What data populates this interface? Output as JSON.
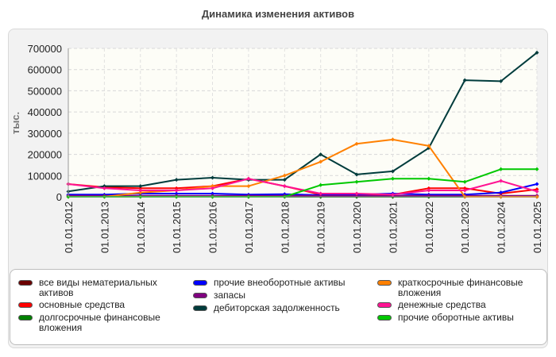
{
  "chart_data": {
    "type": "line",
    "title": "Динамика изменения активов",
    "ylabel": "тыс.",
    "xlabel": "",
    "ylim": [
      0,
      700000
    ],
    "yticks": [
      "0",
      "100000",
      "200000",
      "300000",
      "400000",
      "500000",
      "600000",
      "700000"
    ],
    "ytick_values": [
      0,
      100000,
      200000,
      300000,
      400000,
      500000,
      600000,
      700000
    ],
    "grid": true,
    "legend_position": "bottom",
    "categories": [
      "01.01.2012",
      "01.01.2013",
      "01.01.2014",
      "01.01.2015",
      "01.01.2016",
      "01.01.2017",
      "01.01.2018",
      "01.01.2019",
      "01.01.2020",
      "01.01.2021",
      "01.01.2022",
      "01.01.2023",
      "01.01.2024",
      "01.01.2025"
    ],
    "series": [
      {
        "name": "все виды нематериальных активов",
        "color": "#6b0000",
        "values": [
          0,
          0,
          0,
          0,
          0,
          0,
          0,
          0,
          0,
          0,
          0,
          0,
          0,
          0
        ]
      },
      {
        "name": "основные средства",
        "color": "#ff0000",
        "values": [
          60000,
          45000,
          40000,
          40000,
          50000,
          85000,
          50000,
          10000,
          10000,
          10000,
          40000,
          40000,
          15000,
          35000
        ]
      },
      {
        "name": "долгосрочные финансовые вложения",
        "color": "#008000",
        "values": [
          0,
          0,
          0,
          0,
          0,
          0,
          0,
          0,
          0,
          0,
          0,
          0,
          0,
          0
        ]
      },
      {
        "name": "прочие внеоборотные активы",
        "color": "#0000ff",
        "values": [
          10000,
          10000,
          15000,
          15000,
          15000,
          10000,
          12000,
          8000,
          10000,
          15000,
          10000,
          10000,
          20000,
          60000
        ]
      },
      {
        "name": "запасы",
        "color": "#800080",
        "values": [
          5000,
          5000,
          5000,
          5000,
          5000,
          5000,
          5000,
          5000,
          5000,
          5000,
          5000,
          5000,
          5000,
          5000
        ]
      },
      {
        "name": "дебиторская задолженность",
        "color": "#003c3c",
        "values": [
          25000,
          50000,
          50000,
          80000,
          90000,
          80000,
          80000,
          200000,
          105000,
          120000,
          230000,
          550000,
          545000,
          680000
        ]
      },
      {
        "name": "краткосрочные финансовые вложения",
        "color": "#ff8000",
        "values": [
          0,
          0,
          20000,
          30000,
          50000,
          50000,
          100000,
          165000,
          250000,
          270000,
          240000,
          0,
          0,
          0
        ]
      },
      {
        "name": "денежные средства",
        "color": "#ff1493",
        "values": [
          60000,
          40000,
          30000,
          30000,
          40000,
          85000,
          50000,
          15000,
          15000,
          10000,
          30000,
          30000,
          75000,
          25000
        ]
      },
      {
        "name": "прочие оборотные активы",
        "color": "#00c800",
        "values": [
          0,
          0,
          0,
          0,
          0,
          0,
          0,
          55000,
          70000,
          85000,
          85000,
          70000,
          130000,
          130000
        ]
      }
    ]
  }
}
